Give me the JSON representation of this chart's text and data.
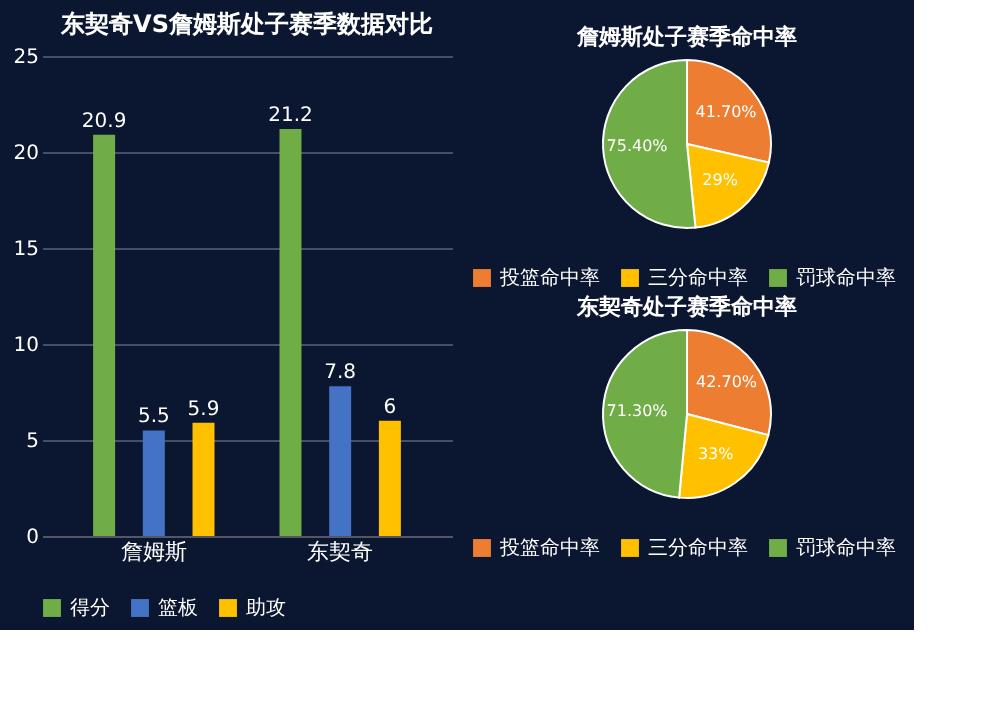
{
  "chart_data": [
    {
      "type": "bar",
      "title": "东契奇VS詹姆斯处子赛季数据对比",
      "categories": [
        "詹姆斯",
        "东契奇"
      ],
      "series": [
        {
          "name": "得分",
          "color": "#70ad47",
          "values": [
            20.9,
            21.2
          ]
        },
        {
          "name": "篮板",
          "color": "#4472c4",
          "values": [
            5.5,
            7.8
          ]
        },
        {
          "name": "助攻",
          "color": "#ffc000",
          "values": [
            5.9,
            6
          ]
        }
      ],
      "ylim": [
        0,
        25
      ],
      "yticks": [
        0,
        5,
        10,
        15,
        20,
        25
      ],
      "grid": "y",
      "legend": "bottom",
      "data_labels": true
    },
    {
      "type": "pie",
      "title": "詹姆斯处子赛季命中率",
      "categories": [
        "投篮命中率",
        "三分命中率",
        "罚球命中率"
      ],
      "values": [
        41.7,
        29,
        75.4
      ],
      "value_labels": [
        "41.70%",
        "29%",
        "75.40%"
      ],
      "colors": [
        "#ed7d31",
        "#ffc000",
        "#70ad47"
      ],
      "legend": "bottom"
    },
    {
      "type": "pie",
      "title": "东契奇处子赛季命中率",
      "categories": [
        "投篮命中率",
        "三分命中率",
        "罚球命中率"
      ],
      "values": [
        42.7,
        33,
        71.3
      ],
      "value_labels": [
        "42.70%",
        "33%",
        "71.30%"
      ],
      "colors": [
        "#ed7d31",
        "#ffc000",
        "#70ad47"
      ],
      "legend": "bottom"
    }
  ]
}
